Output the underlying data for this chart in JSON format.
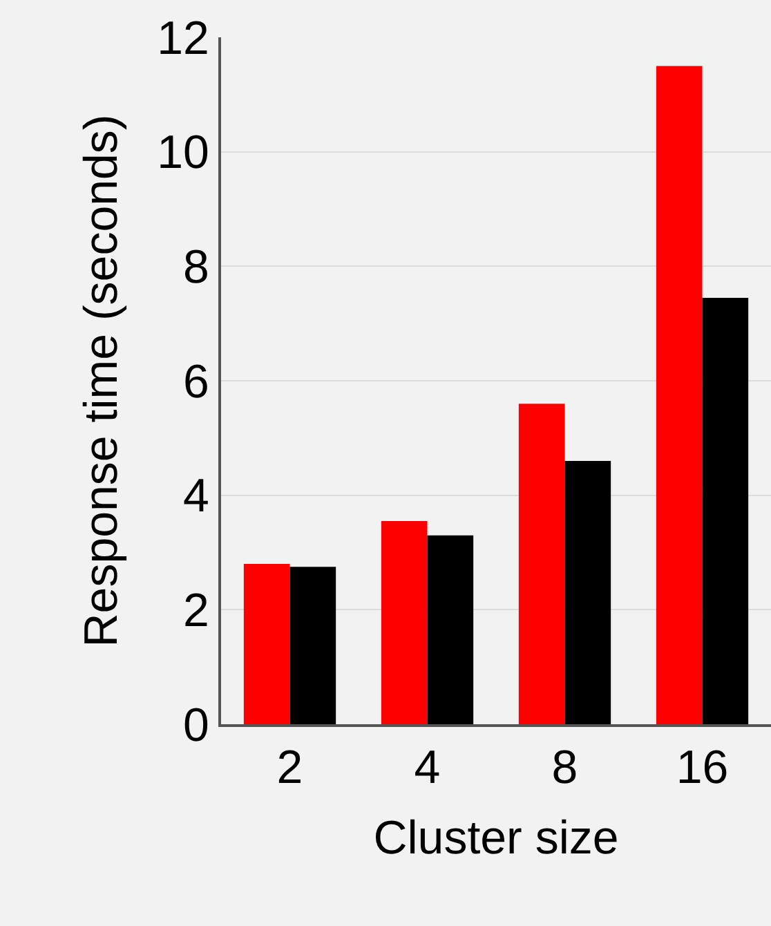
{
  "chart_data": {
    "type": "bar",
    "xlabel": "Cluster size",
    "ylabel": "Response time (seconds)",
    "categories": [
      "2",
      "4",
      "8",
      "16"
    ],
    "series": [
      {
        "color": "#ff0000",
        "values": [
          2.8,
          3.55,
          5.6,
          11.5
        ]
      },
      {
        "color": "#000000",
        "values": [
          2.75,
          3.3,
          4.6,
          7.45
        ]
      }
    ],
    "ylim": [
      0,
      12
    ],
    "yticks": [
      0,
      2,
      4,
      6,
      8,
      10,
      12
    ],
    "grid": "y"
  }
}
